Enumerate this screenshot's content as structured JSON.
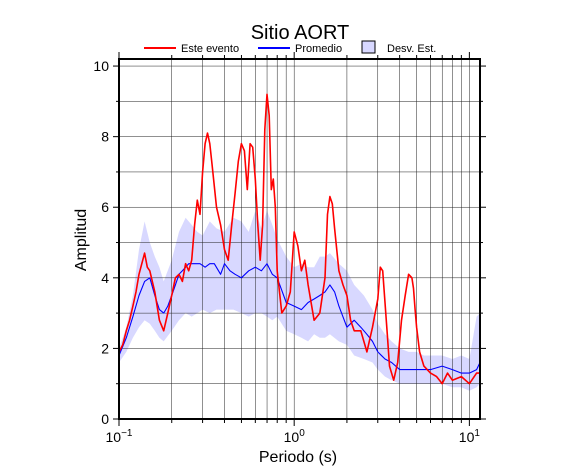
{
  "chart_data": {
    "type": "line",
    "title": "Sitio AORT",
    "xlabel": "Periodo (s)",
    "ylabel": "Amplitud",
    "x_scale": "log",
    "xlim": [
      0.1,
      11.5
    ],
    "ylim": [
      0,
      10.2
    ],
    "grid": true,
    "legend_position": "top",
    "x_ticks": [
      {
        "value": 0.1,
        "base": "10",
        "exp": "−1"
      },
      {
        "value": 1,
        "base": "10",
        "exp": "0"
      },
      {
        "value": 10,
        "base": "10",
        "exp": "1"
      }
    ],
    "y_ticks": [
      0,
      2,
      4,
      6,
      8,
      10
    ],
    "legend": [
      {
        "label": "Este evento",
        "kind": "line",
        "color": "#ff0000"
      },
      {
        "label": "Promedio",
        "kind": "line",
        "color": "#0000ff"
      },
      {
        "label": "Desv. Est.",
        "kind": "box",
        "color": "#d8d8ff"
      }
    ],
    "series": [
      {
        "name": "Este evento",
        "color": "#ff0000",
        "x": [
          0.1,
          0.105,
          0.11,
          0.115,
          0.12,
          0.125,
          0.13,
          0.135,
          0.14,
          0.145,
          0.15,
          0.16,
          0.17,
          0.18,
          0.19,
          0.2,
          0.21,
          0.22,
          0.23,
          0.24,
          0.25,
          0.26,
          0.27,
          0.28,
          0.29,
          0.3,
          0.31,
          0.32,
          0.33,
          0.34,
          0.36,
          0.38,
          0.4,
          0.42,
          0.44,
          0.46,
          0.48,
          0.5,
          0.52,
          0.54,
          0.56,
          0.58,
          0.6,
          0.62,
          0.64,
          0.66,
          0.68,
          0.7,
          0.72,
          0.74,
          0.76,
          0.78,
          0.8,
          0.85,
          0.9,
          0.95,
          1.0,
          1.05,
          1.1,
          1.15,
          1.2,
          1.3,
          1.4,
          1.5,
          1.55,
          1.6,
          1.65,
          1.7,
          1.8,
          1.9,
          2.0,
          2.1,
          2.2,
          2.4,
          2.6,
          2.8,
          3.0,
          3.1,
          3.2,
          3.3,
          3.4,
          3.5,
          3.7,
          3.9,
          4.1,
          4.3,
          4.5,
          4.7,
          4.8,
          4.9,
          5.0,
          5.2,
          5.5,
          6.0,
          6.5,
          7.0,
          7.5,
          8.0,
          9.0,
          10.0,
          11.0,
          11.5
        ],
        "y": [
          1.9,
          2.1,
          2.5,
          2.8,
          3.2,
          3.6,
          4.1,
          4.4,
          4.7,
          4.3,
          4.2,
          3.6,
          2.8,
          2.5,
          3.0,
          3.5,
          4.0,
          4.1,
          3.9,
          4.4,
          4.2,
          4.5,
          5.5,
          6.2,
          5.8,
          7.0,
          7.8,
          8.1,
          7.8,
          7.2,
          6.0,
          5.5,
          4.8,
          4.5,
          5.5,
          6.4,
          7.3,
          7.8,
          7.6,
          6.5,
          7.8,
          7.7,
          6.8,
          5.5,
          4.5,
          5.5,
          8.2,
          9.2,
          8.6,
          6.5,
          6.8,
          6.0,
          4.2,
          3.0,
          3.2,
          3.6,
          5.3,
          4.9,
          4.2,
          4.5,
          3.8,
          2.8,
          3.0,
          4.0,
          5.8,
          6.3,
          6.1,
          5.4,
          4.2,
          3.8,
          3.5,
          2.8,
          2.5,
          2.5,
          1.9,
          2.6,
          3.4,
          4.3,
          4.2,
          3.3,
          2.4,
          1.5,
          1.1,
          1.6,
          2.8,
          3.5,
          4.1,
          4.0,
          3.7,
          3.1,
          2.6,
          1.9,
          1.5,
          1.3,
          1.2,
          1.0,
          1.3,
          1.1,
          1.2,
          1.0,
          1.3,
          1.3
        ]
      },
      {
        "name": "Promedio",
        "color": "#0000ff",
        "x": [
          0.1,
          0.11,
          0.12,
          0.13,
          0.14,
          0.15,
          0.16,
          0.17,
          0.18,
          0.19,
          0.2,
          0.21,
          0.22,
          0.23,
          0.24,
          0.25,
          0.27,
          0.29,
          0.31,
          0.33,
          0.35,
          0.38,
          0.4,
          0.43,
          0.46,
          0.5,
          0.55,
          0.6,
          0.65,
          0.7,
          0.75,
          0.8,
          0.9,
          1.0,
          1.1,
          1.2,
          1.3,
          1.4,
          1.5,
          1.6,
          1.7,
          1.8,
          2.0,
          2.2,
          2.4,
          2.6,
          2.8,
          3.0,
          3.3,
          3.6,
          4.0,
          4.5,
          5.0,
          5.5,
          6.0,
          7.0,
          8.0,
          9.0,
          10.0,
          11.0,
          11.5
        ],
        "y": [
          1.8,
          2.3,
          2.9,
          3.5,
          3.9,
          4.0,
          3.5,
          3.1,
          3.0,
          3.2,
          3.5,
          3.8,
          4.1,
          4.2,
          4.3,
          4.4,
          4.4,
          4.4,
          4.3,
          4.4,
          4.4,
          4.1,
          4.4,
          4.2,
          4.1,
          4.0,
          4.2,
          4.3,
          4.2,
          4.4,
          4.1,
          4.0,
          3.3,
          3.2,
          3.1,
          3.3,
          3.4,
          3.5,
          3.6,
          3.8,
          3.6,
          3.2,
          2.6,
          2.8,
          2.6,
          2.4,
          2.2,
          1.9,
          1.7,
          1.6,
          1.4,
          1.4,
          1.4,
          1.4,
          1.4,
          1.5,
          1.4,
          1.3,
          1.3,
          1.4,
          1.6
        ]
      }
    ],
    "std_band": {
      "name": "Desv. Est.",
      "color": "#d8d8ff",
      "x": [
        0.1,
        0.11,
        0.12,
        0.13,
        0.14,
        0.15,
        0.16,
        0.17,
        0.18,
        0.2,
        0.22,
        0.24,
        0.26,
        0.28,
        0.3,
        0.33,
        0.36,
        0.4,
        0.45,
        0.5,
        0.55,
        0.6,
        0.65,
        0.7,
        0.75,
        0.8,
        0.9,
        1.0,
        1.1,
        1.2,
        1.3,
        1.4,
        1.5,
        1.6,
        1.8,
        2.0,
        2.2,
        2.5,
        2.8,
        3.0,
        3.3,
        3.6,
        4.0,
        4.5,
        5.0,
        5.5,
        6.0,
        7.0,
        8.0,
        9.0,
        10.0,
        11.0,
        11.5
      ],
      "upper": [
        2.0,
        2.6,
        3.5,
        4.8,
        5.6,
        5.0,
        4.6,
        4.3,
        3.9,
        4.5,
        5.3,
        5.7,
        5.5,
        5.3,
        5.2,
        5.6,
        5.4,
        5.3,
        5.7,
        5.6,
        5.3,
        5.9,
        5.4,
        5.9,
        5.5,
        5.1,
        4.6,
        4.3,
        4.4,
        4.3,
        4.3,
        4.6,
        4.6,
        4.7,
        4.4,
        4.2,
        3.8,
        3.5,
        3.1,
        2.7,
        2.4,
        2.2,
        2.0,
        1.9,
        1.9,
        1.8,
        1.8,
        1.8,
        1.7,
        1.8,
        1.7,
        2.9,
        3.0
      ],
      "lower": [
        1.6,
        1.9,
        2.3,
        2.6,
        2.8,
        2.7,
        2.5,
        2.3,
        2.2,
        2.5,
        2.8,
        3.0,
        2.9,
        3.0,
        3.1,
        3.0,
        3.1,
        3.1,
        3.1,
        3.0,
        2.9,
        3.0,
        3.0,
        2.9,
        2.8,
        2.9,
        2.5,
        2.4,
        2.3,
        2.2,
        2.4,
        2.3,
        2.3,
        2.4,
        2.2,
        2.1,
        1.8,
        1.7,
        1.6,
        1.4,
        1.2,
        1.1,
        1.0,
        1.0,
        1.0,
        1.0,
        1.0,
        1.0,
        0.9,
        0.9,
        0.8,
        0.9,
        1.0
      ]
    }
  }
}
